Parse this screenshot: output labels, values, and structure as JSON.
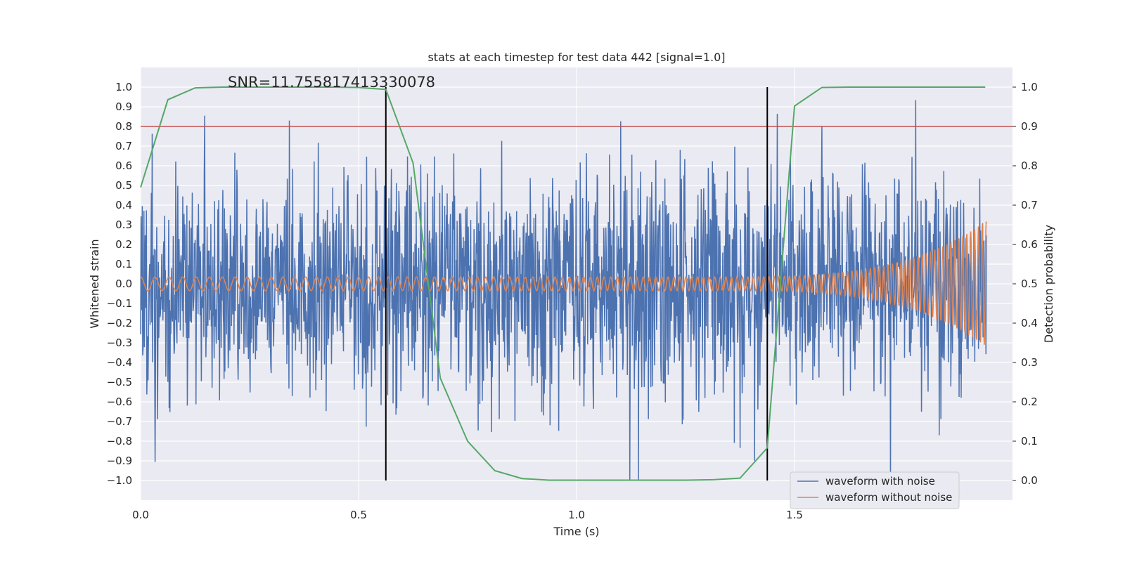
{
  "chart_data": {
    "type": "line",
    "title": "stats at each timestep for test data 442 [signal=1.0]",
    "xlabel": "Time (s)",
    "ylabel": "Whitened strain",
    "ylabel_right": "Detection probability",
    "xlim": [
      0.0,
      2.0
    ],
    "ylim": [
      -1.1,
      1.1
    ],
    "ylim_right": [
      -0.05,
      1.05
    ],
    "x_ticks": [
      "0.0",
      "0.5",
      "1.0",
      "1.5"
    ],
    "x_tick_values": [
      0.0,
      0.5,
      1.0,
      1.5
    ],
    "y_ticks": [
      "−1.0",
      "−0.9",
      "−0.8",
      "−0.7",
      "−0.6",
      "−0.5",
      "−0.4",
      "−0.3",
      "−0.2",
      "−0.1",
      "0.0",
      "0.1",
      "0.2",
      "0.3",
      "0.4",
      "0.5",
      "0.6",
      "0.7",
      "0.8",
      "0.9",
      "1.0"
    ],
    "y_tick_values": [
      -1.0,
      -0.9,
      -0.8,
      -0.7,
      -0.6,
      -0.5,
      -0.4,
      -0.3,
      -0.2,
      -0.1,
      0.0,
      0.1,
      0.2,
      0.3,
      0.4,
      0.5,
      0.6,
      0.7,
      0.8,
      0.9,
      1.0
    ],
    "y_ticks_right": [
      "0.0",
      "0.1",
      "0.2",
      "0.3",
      "0.4",
      "0.5",
      "0.6",
      "0.7",
      "0.8",
      "0.9",
      "1.0"
    ],
    "y_tick_values_right": [
      0.0,
      0.1,
      0.2,
      0.3,
      0.4,
      0.5,
      0.6,
      0.7,
      0.8,
      0.9,
      1.0
    ],
    "grid": true,
    "legend_position": "lower-right",
    "annotation": "SNR=11.755817413330078",
    "threshold": {
      "y": 0.8,
      "color": "#c44e52"
    },
    "vertical_markers": [
      {
        "x": 0.5625,
        "y_range": [
          -1.0,
          1.0
        ],
        "color": "#000000"
      },
      {
        "x": 1.4375,
        "y_range": [
          -1.0,
          1.0
        ],
        "color": "#000000"
      }
    ],
    "series": [
      {
        "name": "waveform with noise",
        "color": "#4c72b0",
        "style": "gaussian noise, sigma ≈ 0.28, 2048 samples over 0–2 s, peaks ≈ ±1.0"
      },
      {
        "name": "waveform without noise",
        "color": "#dd8452",
        "style": "chirp: amplitude ≈ 0.035 rising to ≈ 0.4 near t = 2.0 s, frequency ≈ 32 Hz rising"
      },
      {
        "color": "#55a868",
        "axis": "right",
        "x": [
          0.0,
          0.0625,
          0.125,
          0.1875,
          0.25,
          0.3125,
          0.375,
          0.4375,
          0.5,
          0.5625,
          0.625,
          0.6875,
          0.75,
          0.8125,
          0.875,
          0.9375,
          1.0,
          1.0625,
          1.125,
          1.1875,
          1.25,
          1.3125,
          1.375,
          1.4375,
          1.5,
          1.5625,
          1.625,
          1.6875,
          1.75,
          1.8125,
          1.875,
          1.9375
        ],
        "y": [
          0.745,
          0.968,
          0.998,
          1.0,
          1.0,
          1.0,
          1.0,
          1.0,
          0.999,
          0.994,
          0.807,
          0.26,
          0.1,
          0.025,
          0.005,
          0.001,
          0.001,
          0.001,
          0.001,
          0.001,
          0.001,
          0.002,
          0.006,
          0.083,
          0.952,
          0.999,
          1.0,
          1.0,
          1.0,
          1.0,
          1.0,
          1.0
        ]
      }
    ]
  }
}
